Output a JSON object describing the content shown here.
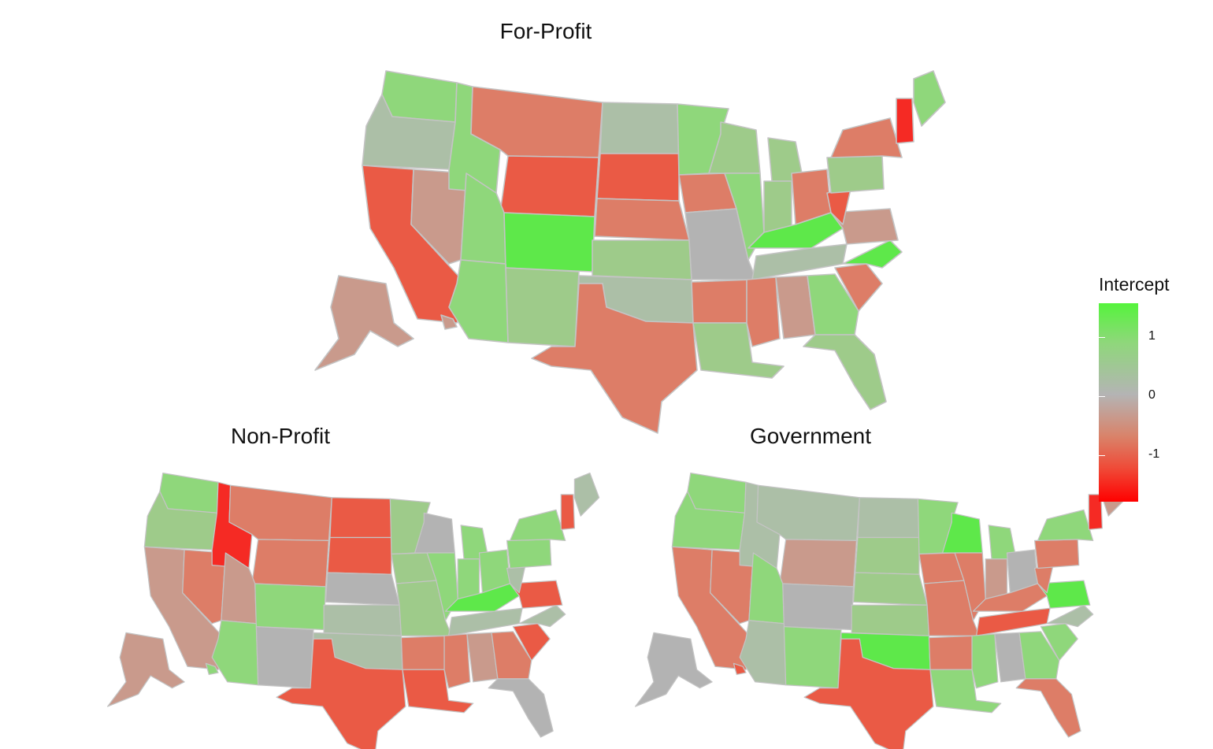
{
  "panels": [
    {
      "title": "For-Profit"
    },
    {
      "title": "Non-Profit"
    },
    {
      "title": "Government"
    }
  ],
  "legend": {
    "title": "Intercept",
    "ticks": [
      "1",
      "0",
      "-1"
    ],
    "colors": {
      "high": "#55f43c",
      "mid": "#b4b4b4",
      "low": "#ff0000"
    }
  },
  "colors": {
    "bright_green": "#5ee84a",
    "green": "#8fd77b",
    "light_green": "#9ecb8a",
    "gray_green": "#acbfa7",
    "gray": "#b3b3b3",
    "pinkish": "#c99a8c",
    "salmon": "#dd7d67",
    "orange_red": "#ea5a45",
    "red": "#f52a24"
  },
  "chart_data": [
    {
      "type": "choropleth",
      "title": "For-Profit",
      "fill": {
        "WA": "green",
        "OR": "gray_green",
        "CA": "orange_red",
        "NV": "pinkish",
        "ID": "green",
        "MT": "salmon",
        "WY": "orange_red",
        "UT": "green",
        "CO": "bright_green",
        "AZ": "green",
        "NM": "light_green",
        "ND": "gray_green",
        "SD": "orange_red",
        "NE": "salmon",
        "KS": "light_green",
        "OK": "gray_green",
        "TX": "salmon",
        "MN": "green",
        "IA": "salmon",
        "MO": "gray",
        "AR": "salmon",
        "LA": "light_green",
        "WI": "light_green",
        "IL": "green",
        "MI": "light_green",
        "IN": "light_green",
        "OH": "salmon",
        "KY": "bright_green",
        "TN": "gray_green",
        "MS": "salmon",
        "AL": "pinkish",
        "GA": "green",
        "FL": "light_green",
        "SC": "salmon",
        "NC": "bright_green",
        "VA": "pinkish",
        "WV": "orange_red",
        "PA": "light_green",
        "NY": "salmon",
        "ME": "green",
        "NE_states": "red",
        "AK": "pinkish",
        "HI": "pinkish"
      }
    },
    {
      "type": "choropleth",
      "title": "Non-Profit",
      "fill": {
        "WA": "green",
        "OR": "light_green",
        "CA": "pinkish",
        "NV": "salmon",
        "ID": "red",
        "MT": "salmon",
        "WY": "salmon",
        "UT": "pinkish",
        "CO": "green",
        "AZ": "green",
        "NM": "gray",
        "ND": "orange_red",
        "SD": "orange_red",
        "NE": "gray",
        "KS": "gray_green",
        "OK": "gray_green",
        "TX": "orange_red",
        "MN": "light_green",
        "IA": "light_green",
        "MO": "light_green",
        "AR": "salmon",
        "LA": "orange_red",
        "WI": "gray",
        "IL": "green",
        "MI": "green",
        "IN": "green",
        "OH": "green",
        "KY": "bright_green",
        "TN": "gray_green",
        "MS": "salmon",
        "AL": "pinkish",
        "GA": "salmon",
        "FL": "gray",
        "SC": "orange_red",
        "NC": "gray_green",
        "VA": "orange_red",
        "WV": "gray_green",
        "PA": "green",
        "NY": "green",
        "ME": "gray_green",
        "NE_states": "orange_red",
        "AK": "pinkish",
        "HI": "green"
      }
    },
    {
      "type": "choropleth",
      "title": "Government",
      "fill": {
        "WA": "green",
        "OR": "green",
        "CA": "salmon",
        "NV": "salmon",
        "ID": "gray_green",
        "MT": "gray_green",
        "WY": "pinkish",
        "UT": "green",
        "CO": "gray",
        "AZ": "gray_green",
        "NM": "green",
        "ND": "gray_green",
        "SD": "light_green",
        "NE": "light_green",
        "KS": "light_green",
        "OK": "bright_green",
        "TX": "orange_red",
        "MN": "green",
        "IA": "salmon",
        "MO": "salmon",
        "AR": "salmon",
        "LA": "green",
        "WI": "bright_green",
        "IL": "salmon",
        "MI": "green",
        "IN": "pinkish",
        "OH": "gray",
        "KY": "salmon",
        "TN": "orange_red",
        "MS": "green",
        "AL": "gray",
        "GA": "green",
        "FL": "salmon",
        "SC": "green",
        "NC": "gray_green",
        "VA": "bright_green",
        "WV": "salmon",
        "PA": "salmon",
        "NY": "green",
        "ME": "pinkish",
        "NE_states": "red",
        "AK": "gray",
        "HI": "orange_red"
      }
    }
  ]
}
